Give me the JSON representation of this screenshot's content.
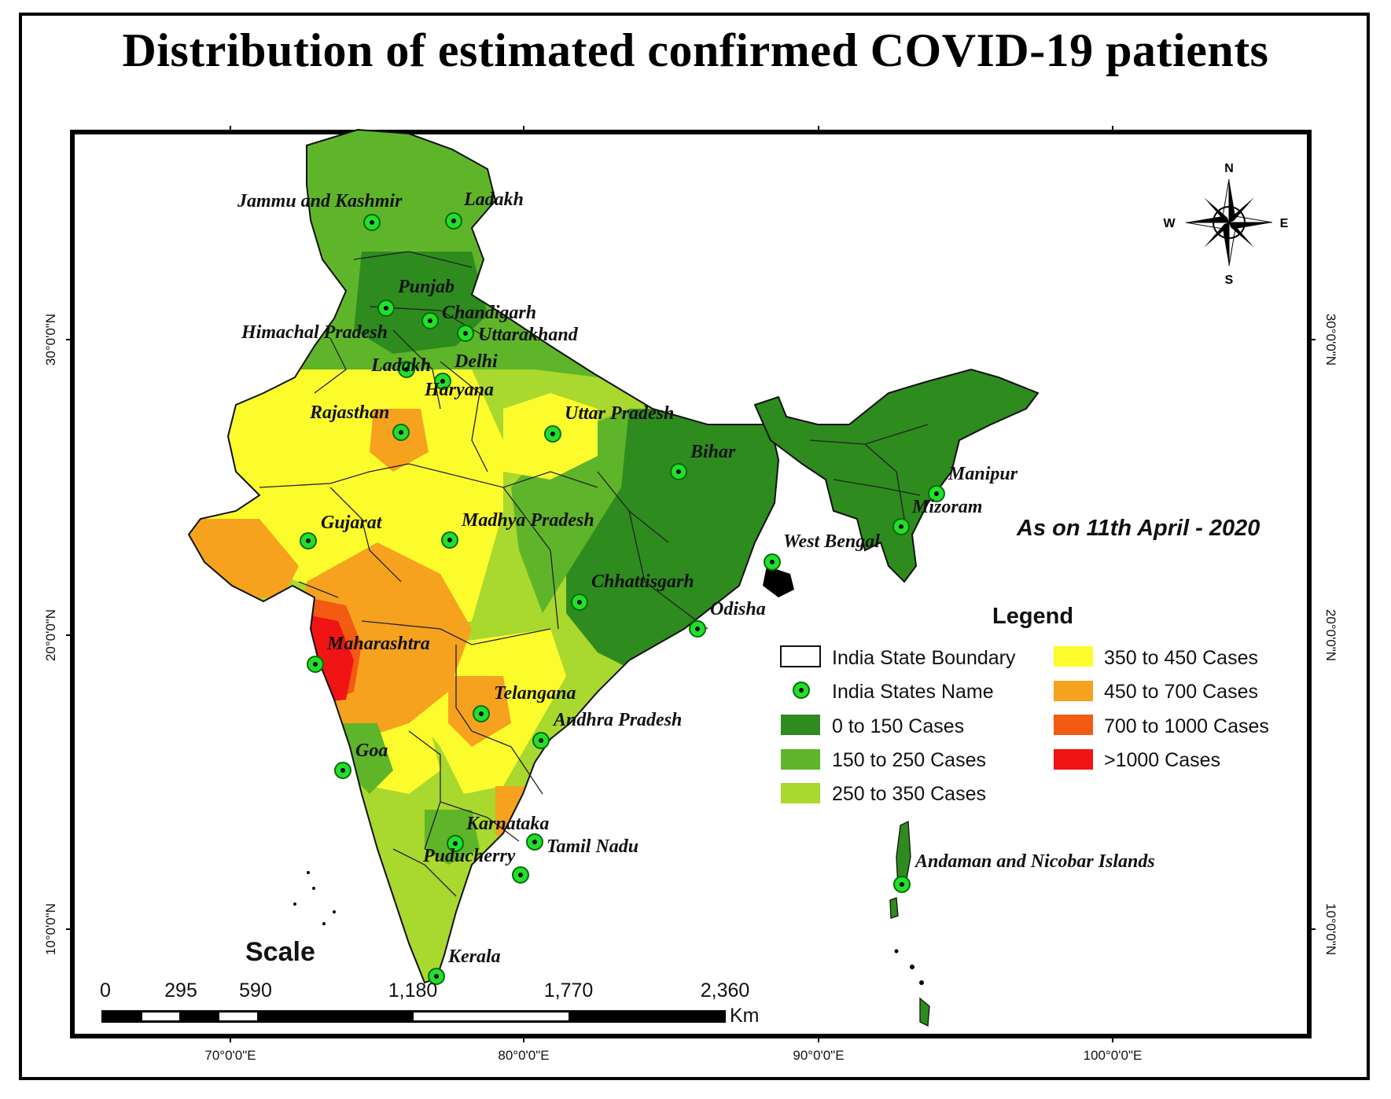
{
  "title": "Distribution of estimated confirmed COVID-19 patients",
  "date_note": "As on 11th April - 2020",
  "compass": {
    "north": "N",
    "south": "S",
    "east": "E",
    "west": "W"
  },
  "legend": {
    "title": "Legend",
    "items": [
      {
        "label": "India State Boundary",
        "swatch": "#ffffff"
      },
      {
        "label": "India States Name",
        "swatch": "marker"
      },
      {
        "label": "0 to 150 Cases",
        "swatch": "#2e8b1e"
      },
      {
        "label": "150 to 250 Cases",
        "swatch": "#5fb52a"
      },
      {
        "label": "250 to 350 Cases",
        "swatch": "#a9d82e"
      },
      {
        "label": "350 to 450 Cases",
        "swatch": "#fcfc2c"
      },
      {
        "label": "450 to 700 Cases",
        "swatch": "#f6a21e"
      },
      {
        "label": "700 to 1000 Cases",
        "swatch": "#f35a12"
      },
      {
        "label": ">1000 Cases",
        "swatch": "#f01414"
      }
    ]
  },
  "scale": {
    "title": "Scale",
    "ticks": [
      "0",
      "295",
      "590",
      "1,180",
      "1,770",
      "2,360"
    ],
    "unit": "Km"
  },
  "axes": {
    "longitude": [
      "70°0'0\"E",
      "80°0'0\"E",
      "90°0'0\"E",
      "100°0'0\"E"
    ],
    "latitude": [
      "30°0'0\"N",
      "20°0'0\"N",
      "10°0'0\"N"
    ]
  },
  "states": [
    "Jammu and Kashmir",
    "Ladakh",
    "Punjab",
    "Chandigarh",
    "Himachal Pradesh",
    "Uttarakhand",
    "Ladakh",
    "Delhi",
    "Haryana",
    "Rajasthan",
    "Uttar Pradesh",
    "Bihar",
    "Manipur",
    "Mizoram",
    "Gujarat",
    "Madhya Pradesh",
    "West Bengal",
    "Chhattisgarh",
    "Odisha",
    "Maharashtra",
    "Telangana",
    "Andhra Pradesh",
    "Goa",
    "Karnataka",
    "Tamil Nadu",
    "Puducherry",
    "Andaman and Nicobar Islands",
    "Kerala"
  ],
  "colors": {
    "c0": "#2e8b1e",
    "c1": "#5fb52a",
    "c2": "#a9d82e",
    "c3": "#fcfc2c",
    "c4": "#f6a21e",
    "c5": "#f35a12",
    "c6": "#f01414",
    "marker": "#22e02a"
  }
}
